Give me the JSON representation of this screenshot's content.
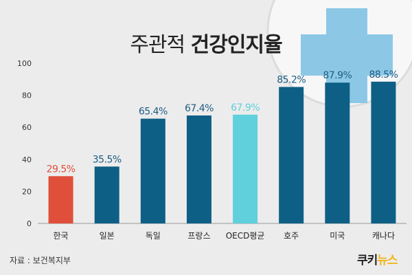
{
  "title": {
    "normal": "주관적",
    "bold": "건강인지율"
  },
  "source": "자료 : 보건복지부",
  "logo": {
    "part1": "쿠키",
    "part2": "뉴스"
  },
  "colors": {
    "default_bar": "#0e5f86",
    "korea_bar": "#e04f3a",
    "oecd_bar": "#5fd0dc",
    "default_label": "#1d5c84",
    "korea_label": "#e04f3a",
    "oecd_label": "#5fd0dc",
    "axis": "#333333",
    "cross": "#8cc8e6"
  },
  "chart_data": {
    "type": "bar",
    "title": "주관적 건강인지율",
    "categories": [
      "한국",
      "일본",
      "독일",
      "프랑스",
      "OECD평균",
      "호주",
      "미국",
      "캐나다"
    ],
    "values": [
      29.5,
      35.5,
      65.4,
      67.4,
      67.9,
      85.2,
      87.9,
      88.5
    ],
    "data_labels": [
      "29.5%",
      "35.5%",
      "65.4%",
      "67.4%",
      "67.9%",
      "85.2%",
      "87.9%",
      "88.5%"
    ],
    "highlight": {
      "한국": "korea",
      "OECD평균": "oecd"
    },
    "ylim": [
      0,
      100
    ],
    "yticks": [
      0,
      20,
      40,
      60,
      80,
      100
    ],
    "xlabel": "",
    "ylabel": "",
    "grid": false
  }
}
